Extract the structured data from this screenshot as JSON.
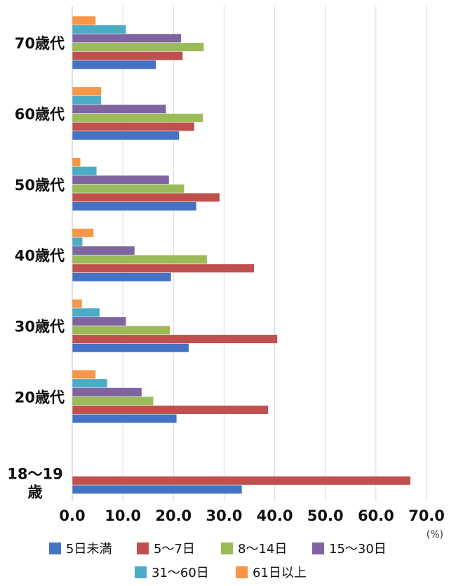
{
  "chart_data": {
    "type": "bar",
    "orientation": "horizontal",
    "categories": [
      "70歳代",
      "60歳代",
      "50歳代",
      "40歳代",
      "30歳代",
      "20歳代",
      "18～19\n歳"
    ],
    "series": [
      {
        "name": "5日未満",
        "color": "#4472C4",
        "values": [
          16.5,
          21.1,
          24.5,
          19.5,
          23.0,
          20.6,
          33.5
        ]
      },
      {
        "name": "5～7日",
        "color": "#C0504D",
        "values": [
          21.8,
          24.1,
          29.1,
          35.9,
          40.5,
          38.7,
          66.8
        ]
      },
      {
        "name": "8～14日",
        "color": "#9BBB59",
        "values": [
          26.0,
          25.8,
          22.1,
          26.6,
          19.3,
          16.0,
          0
        ]
      },
      {
        "name": "15～30日",
        "color": "#8064A2",
        "values": [
          21.5,
          18.5,
          19.1,
          12.3,
          10.6,
          13.7,
          0
        ]
      },
      {
        "name": "31～60日",
        "color": "#4BACC6",
        "values": [
          10.6,
          5.7,
          4.8,
          2.0,
          5.4,
          6.9,
          0
        ]
      },
      {
        "name": "61日以上",
        "color": "#F79646",
        "values": [
          4.6,
          5.7,
          1.6,
          4.2,
          1.9,
          4.6,
          0
        ]
      }
    ],
    "xticks": [
      "0.0",
      "10.0",
      "20.0",
      "30.0",
      "40.0",
      "50.0",
      "60.0",
      "70.0"
    ],
    "xlim": [
      0,
      70
    ],
    "unit": "(%)",
    "grid": true,
    "legend_position": "bottom"
  }
}
